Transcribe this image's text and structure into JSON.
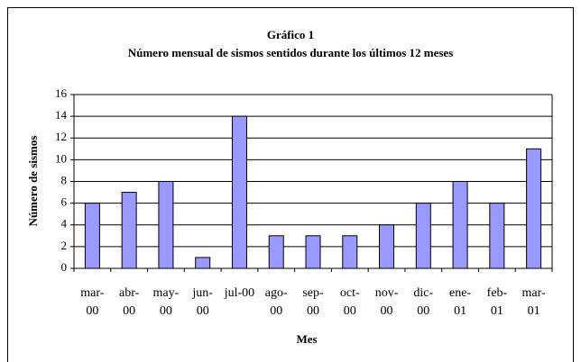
{
  "chart_data": {
    "type": "bar",
    "title": "Gráfico 1",
    "subtitle": "Número mensual de sismos sentidos durante los últimos 12 meses",
    "x_label": "Mes",
    "y_label": "Número de sismos",
    "categories": [
      "mar-00",
      "abr-00",
      "may-00",
      "jun-00",
      "jul-00",
      "ago-00",
      "sep-00",
      "oct-00",
      "nov-00",
      "dic-00",
      "ene-01",
      "feb-01",
      "mar-01"
    ],
    "values": [
      6,
      7,
      8,
      1,
      14,
      3,
      3,
      3,
      4,
      6,
      8,
      6,
      11
    ],
    "color": "#9999ff",
    "ylim": [
      0,
      16
    ],
    "yticks": [
      0,
      2,
      4,
      6,
      8,
      10,
      12,
      14,
      16
    ],
    "grid": true
  }
}
